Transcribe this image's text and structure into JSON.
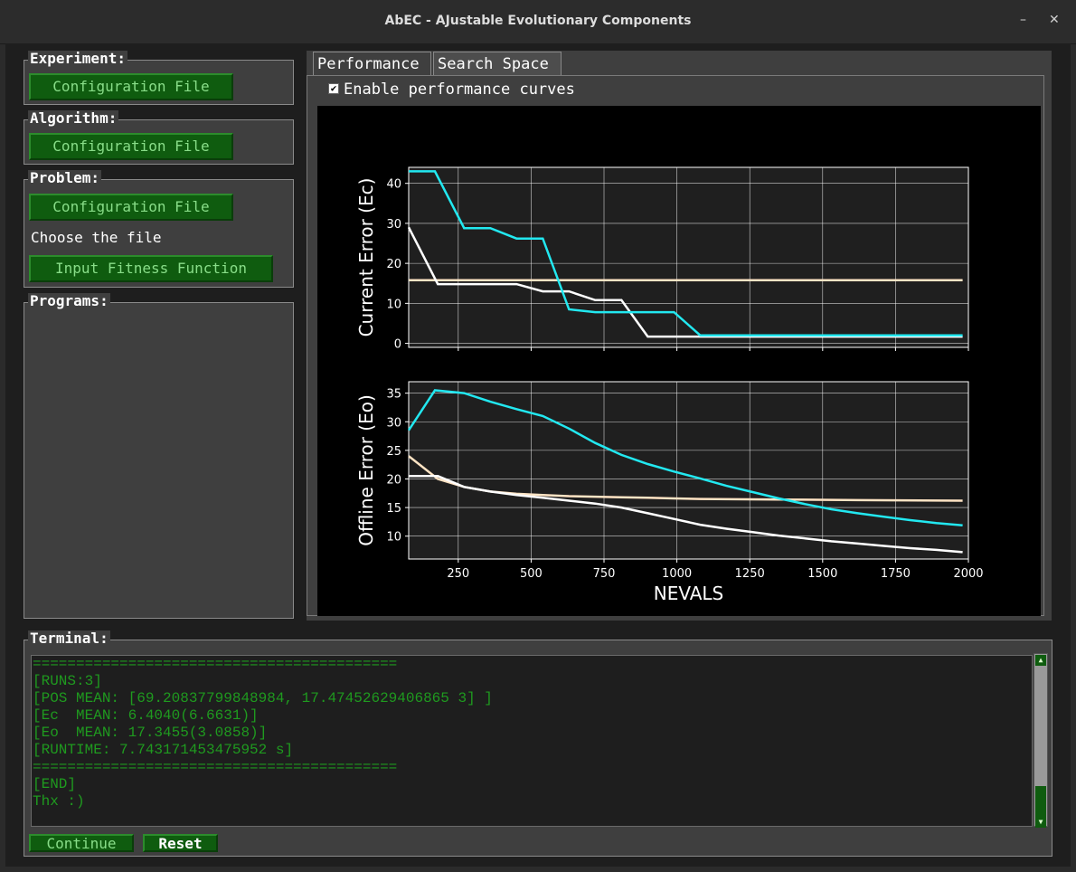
{
  "window": {
    "title": "AbEC - AJustable Evolutionary Components",
    "minimize": "–",
    "close": "✕"
  },
  "experiment": {
    "title": "Experiment:",
    "button": "Configuration File"
  },
  "algorithm": {
    "title": "Algorithm:",
    "button": "Configuration File"
  },
  "problem": {
    "title": "Problem:",
    "button": "Configuration File",
    "choose_label": "Choose the file",
    "fitness_button": "Input Fitness Function"
  },
  "programs": {
    "title": "Programs:"
  },
  "tabs": [
    {
      "label": "Performance",
      "active": true
    },
    {
      "label": "Search Space",
      "active": false
    }
  ],
  "performance": {
    "checkbox_label": "Enable performance curves",
    "checked": true
  },
  "terminal": {
    "title": "Terminal:",
    "lines": [
      "==========================================",
      "[RUNS:3]",
      "[POS MEAN: [69.20837799848984, 17.47452629406865 3] ]",
      "[Ec  MEAN: 6.4040(6.6631)]",
      "[Eo  MEAN: 17.3455(3.0858)]",
      "[RUNTIME: 7.743171453475952 s]",
      "==========================================",
      "[END]",
      "Thx :)"
    ],
    "continue_label": "Continue",
    "reset_label": "Reset"
  },
  "chart_data": [
    {
      "type": "line",
      "ylabel": "Current Error (Ec)",
      "xlim": [
        80,
        2000
      ],
      "ylim": [
        -1,
        44
      ],
      "yticks": [
        0,
        10,
        20,
        30,
        40
      ],
      "grid": true,
      "series": [
        {
          "color": "#ffe4c4",
          "x": [
            80,
            1980
          ],
          "y": [
            15.8,
            15.8
          ]
        },
        {
          "color": "#ffffff",
          "x": [
            80,
            180,
            450,
            540,
            630,
            720,
            810,
            900,
            1980
          ],
          "y": [
            29,
            14.8,
            14.8,
            13,
            13,
            10.8,
            10.8,
            1.7,
            1.7
          ]
        },
        {
          "color": "#22e8f0",
          "x": [
            80,
            170,
            270,
            360,
            450,
            540,
            630,
            720,
            810,
            900,
            990,
            1080,
            1980
          ],
          "y": [
            43,
            43,
            28.8,
            28.8,
            26.2,
            26.2,
            8.5,
            7.8,
            7.8,
            7.8,
            7.8,
            2,
            2
          ]
        }
      ]
    },
    {
      "type": "line",
      "ylabel": "Offline Error (Eo)",
      "xlabel": "NEVALS",
      "xlim": [
        80,
        2000
      ],
      "ylim": [
        6,
        37
      ],
      "xticks": [
        250,
        500,
        750,
        1000,
        1250,
        1500,
        1750,
        2000
      ],
      "yticks": [
        10,
        15,
        20,
        25,
        30,
        35
      ],
      "grid": true,
      "series": [
        {
          "color": "#ffe4c4",
          "x": [
            80,
            180,
            270,
            360,
            450,
            540,
            630,
            720,
            810,
            900,
            990,
            1080,
            1350,
            1620,
            1980
          ],
          "y": [
            24,
            20,
            18.6,
            17.8,
            17.4,
            17.2,
            17,
            16.9,
            16.8,
            16.7,
            16.6,
            16.5,
            16.4,
            16.3,
            16.2
          ]
        },
        {
          "color": "#ffffff",
          "x": [
            80,
            180,
            270,
            360,
            450,
            540,
            630,
            720,
            810,
            900,
            990,
            1080,
            1170,
            1260,
            1350,
            1440,
            1530,
            1620,
            1710,
            1800,
            1890,
            1980
          ],
          "y": [
            20.5,
            20.5,
            18.6,
            17.8,
            17.2,
            16.7,
            16.2,
            15.7,
            15,
            14,
            13,
            12,
            11.3,
            10.7,
            10.1,
            9.6,
            9.1,
            8.7,
            8.3,
            7.9,
            7.6,
            7.2
          ]
        },
        {
          "color": "#22e8f0",
          "x": [
            80,
            170,
            270,
            360,
            450,
            540,
            630,
            720,
            810,
            900,
            990,
            1080,
            1170,
            1260,
            1350,
            1440,
            1530,
            1620,
            1710,
            1800,
            1890,
            1980
          ],
          "y": [
            28.5,
            35.5,
            35,
            33.5,
            32.2,
            31,
            28.8,
            26.3,
            24.2,
            22.6,
            21.3,
            20.1,
            18.8,
            17.7,
            16.6,
            15.6,
            14.7,
            14,
            13.4,
            12.8,
            12.3,
            11.9
          ]
        }
      ]
    }
  ]
}
